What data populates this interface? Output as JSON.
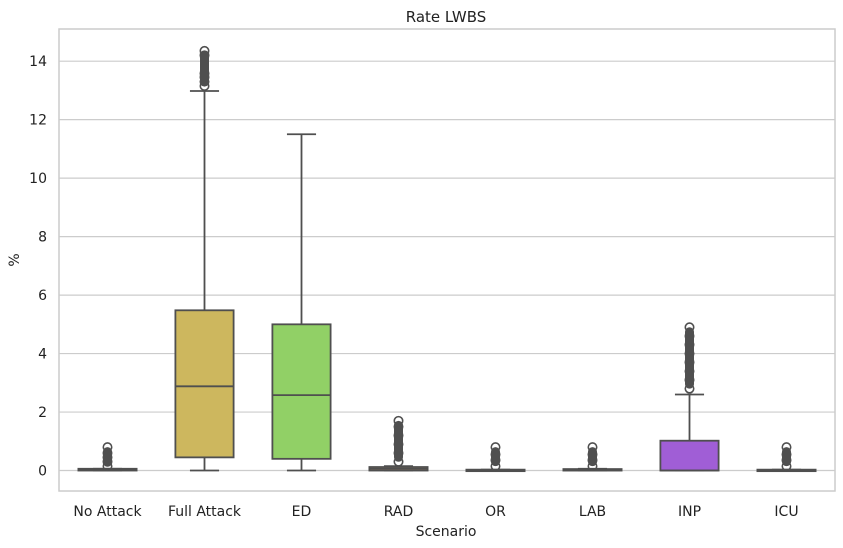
{
  "chart_data": {
    "type": "box",
    "title": "Rate LWBS",
    "xlabel": "Scenario",
    "ylabel": "%",
    "ylim": [
      -0.7,
      15.1
    ],
    "yticks": [
      0,
      2,
      4,
      6,
      8,
      10,
      12,
      14
    ],
    "grid": true,
    "categories": [
      "No Attack",
      "Full Attack",
      "ED",
      "RAD",
      "OR",
      "LAB",
      "INP",
      "ICU"
    ],
    "boxes": [
      {
        "category": "No Attack",
        "q1": 0.0,
        "median": 0.02,
        "q3": 0.06,
        "whisker_low": 0.0,
        "whisker_high": 0.06,
        "outliers": [
          0.15,
          0.3,
          0.45,
          0.6,
          0.8
        ],
        "color": "#6e9bc9"
      },
      {
        "category": "Full Attack",
        "q1": 0.45,
        "median": 2.88,
        "q3": 5.48,
        "whisker_low": 0.0,
        "whisker_high": 12.98,
        "outliers": [
          13.15,
          13.3,
          13.45,
          13.58,
          14.2,
          14.35
        ],
        "color": "#cdb75e"
      },
      {
        "category": "ED",
        "q1": 0.4,
        "median": 2.58,
        "q3": 5.0,
        "whisker_low": 0.0,
        "whisker_high": 11.5,
        "outliers": [],
        "color": "#91d066"
      },
      {
        "category": "RAD",
        "q1": 0.0,
        "median": 0.06,
        "q3": 0.12,
        "whisker_low": 0.0,
        "whisker_high": 0.15,
        "outliers": [
          0.3,
          0.6,
          0.9,
          1.2,
          1.5,
          1.7
        ],
        "color": "#e0a070"
      },
      {
        "category": "OR",
        "q1": 0.0,
        "median": 0.01,
        "q3": 0.03,
        "whisker_low": 0.0,
        "whisker_high": 0.03,
        "outliers": [
          0.15,
          0.35,
          0.55,
          0.8
        ],
        "color": "#d57ab0"
      },
      {
        "category": "LAB",
        "q1": 0.0,
        "median": 0.02,
        "q3": 0.05,
        "whisker_low": 0.0,
        "whisker_high": 0.06,
        "outliers": [
          0.15,
          0.35,
          0.55,
          0.8
        ],
        "color": "#7ad5c0"
      },
      {
        "category": "INP",
        "q1": 0.0,
        "median": 0.0,
        "q3": 1.02,
        "whisker_low": 0.0,
        "whisker_high": 2.6,
        "outliers": [
          2.8,
          3.1,
          3.4,
          3.7,
          4.0,
          4.3,
          4.6,
          4.9
        ],
        "color": "#a05ed6"
      },
      {
        "category": "ICU",
        "q1": 0.0,
        "median": 0.01,
        "q3": 0.03,
        "whisker_low": 0.0,
        "whisker_high": 0.03,
        "outliers": [
          0.15,
          0.35,
          0.55,
          0.8
        ],
        "color": "#d2d264"
      }
    ]
  }
}
